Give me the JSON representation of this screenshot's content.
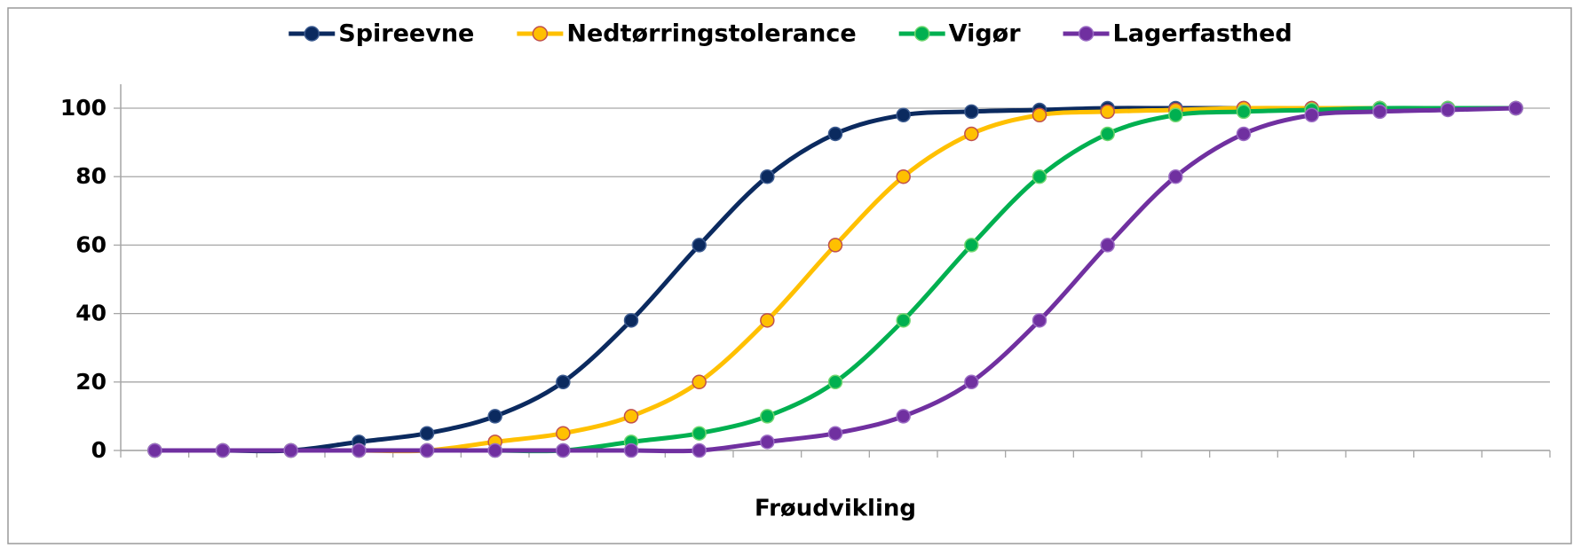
{
  "chart_data": {
    "type": "line",
    "x_label": "Frøudvikling",
    "categories": [
      null,
      null,
      null,
      null,
      null,
      null,
      null,
      null,
      null,
      null,
      null,
      null,
      null,
      null,
      null,
      null,
      null,
      null,
      null,
      null,
      null
    ],
    "series": [
      {
        "name": "Spireevne",
        "color": "#0b2a5f",
        "marker_edge": "#3b5a8f",
        "values": [
          0,
          0,
          0,
          2.5,
          5,
          10,
          20,
          38,
          60,
          80,
          92.5,
          98,
          99,
          99.5,
          100,
          100,
          100,
          100,
          100,
          100,
          100
        ]
      },
      {
        "name": "Nedtørringstolerance",
        "color": "#ffc000",
        "marker_edge": "#c0504d",
        "values": [
          0,
          0,
          0,
          0,
          0,
          2.5,
          5,
          10,
          20,
          38,
          60,
          80,
          92.5,
          98,
          99,
          99.5,
          100,
          100,
          100,
          100,
          100
        ]
      },
      {
        "name": "Vigør",
        "color": "#00b050",
        "marker_edge": "#6fd66f",
        "values": [
          0,
          0,
          0,
          0,
          0,
          0,
          0,
          2.5,
          5,
          10,
          20,
          38,
          60,
          80,
          92.5,
          98,
          99,
          99.5,
          100,
          100,
          100
        ]
      },
      {
        "name": "Lagerfasthed",
        "color": "#7030a0",
        "marker_edge": "#9b6cc4",
        "values": [
          0,
          0,
          0,
          0,
          0,
          0,
          0,
          0,
          0,
          2.5,
          5,
          10,
          20,
          38,
          60,
          80,
          92.5,
          98,
          99,
          99.5,
          100
        ]
      }
    ],
    "ylim": [
      0,
      107
    ],
    "yticks": [
      0,
      20,
      40,
      60,
      80,
      100
    ],
    "grid": true,
    "legend": "top",
    "smooth": true
  }
}
